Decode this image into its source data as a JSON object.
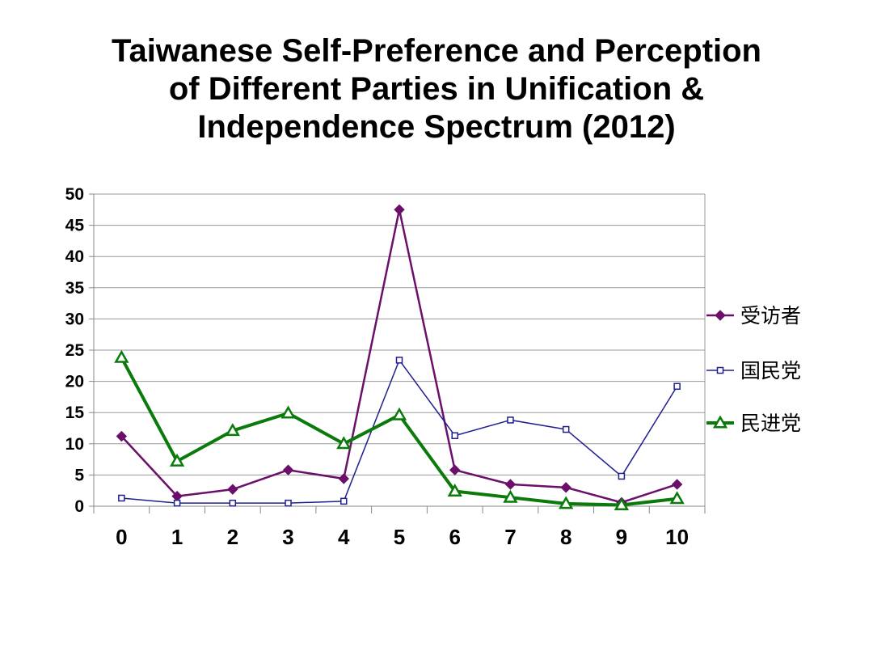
{
  "title_lines": [
    "Taiwanese Self-Preference and Perception",
    "of Different Parties in Unification &",
    "Independence Spectrum (2012)"
  ],
  "chart_data": {
    "type": "line",
    "title": "Taiwanese Self-Preference and Perception of Different Parties in Unification & Independence Spectrum (2012)",
    "xlabel": "",
    "ylabel": "",
    "categories": [
      "0",
      "1",
      "2",
      "3",
      "4",
      "5",
      "6",
      "7",
      "8",
      "9",
      "10"
    ],
    "ylim": [
      0,
      50
    ],
    "yticks": [
      0,
      5,
      10,
      15,
      20,
      25,
      30,
      35,
      40,
      45,
      50
    ],
    "grid": true,
    "legend_position": "right",
    "series": [
      {
        "name": "受访者",
        "color": "#6b0f6b",
        "marker": "diamond",
        "values": [
          11.2,
          1.6,
          2.7,
          5.8,
          4.4,
          47.5,
          5.8,
          3.5,
          3.0,
          0.6,
          3.5
        ]
      },
      {
        "name": "国民党",
        "color": "#1f1f8f",
        "marker": "square",
        "values": [
          1.3,
          0.5,
          0.5,
          0.5,
          0.8,
          23.4,
          11.3,
          13.8,
          12.3,
          4.8,
          19.2
        ]
      },
      {
        "name": "民进党",
        "color": "#0a7a0a",
        "marker": "triangle",
        "values": [
          23.8,
          7.2,
          12.1,
          14.9,
          10.0,
          14.6,
          2.4,
          1.4,
          0.4,
          0.2,
          1.2
        ]
      }
    ]
  }
}
